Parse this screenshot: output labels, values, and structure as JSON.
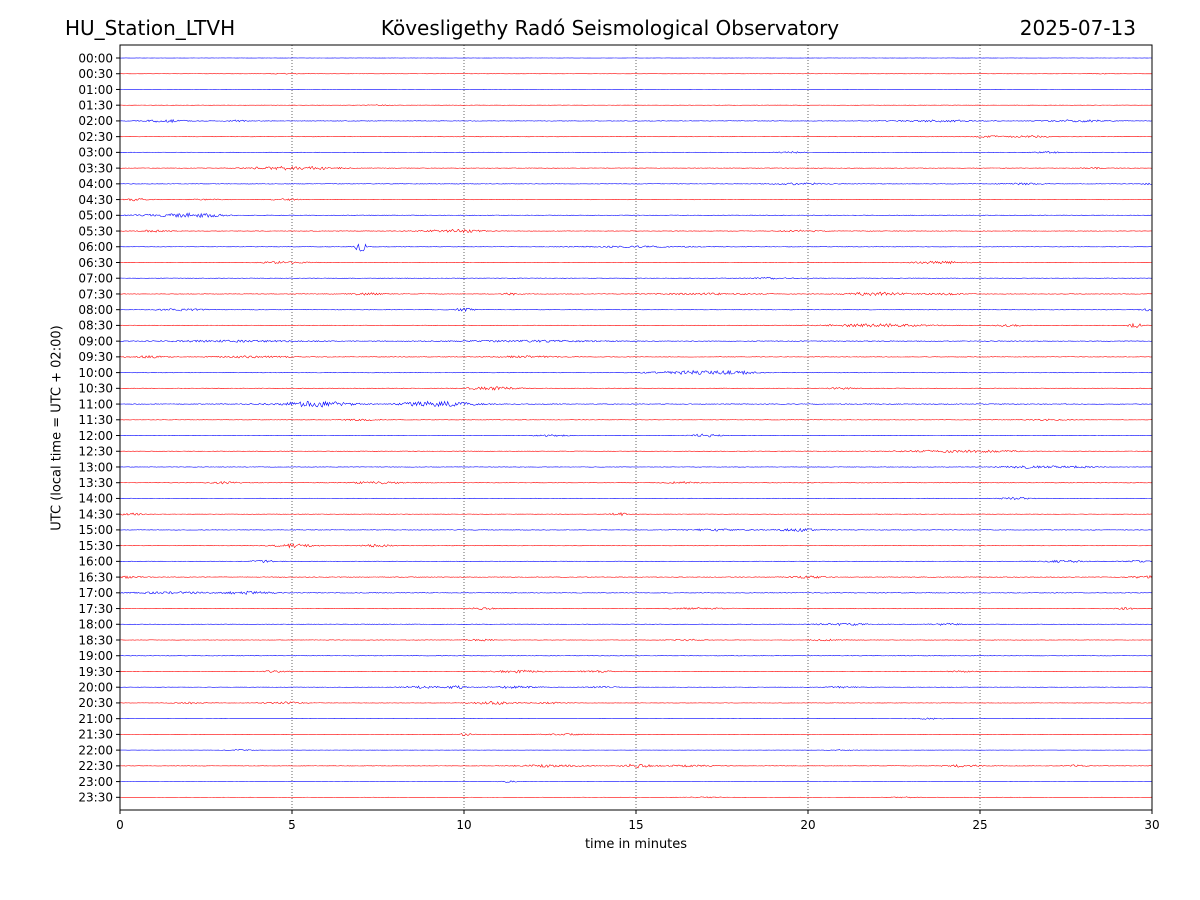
{
  "header": {
    "station": "HU_Station_LTVH",
    "title": "Kövesligethy Radó Seismological Observatory",
    "date": "2025-07-13"
  },
  "chart_data": {
    "type": "line",
    "xlabel": "time in minutes",
    "ylabel": "UTC (local time = UTC + 02:00)",
    "xlim": [
      0,
      30
    ],
    "x_ticks": [
      0,
      5,
      10,
      15,
      20,
      25,
      30
    ],
    "x_tick_labels": [
      "0",
      "5",
      "10",
      "15",
      "20",
      "25",
      "30"
    ],
    "vertical_gridlines": [
      5,
      10,
      15,
      20,
      25
    ],
    "grid": "vertical dotted",
    "trace_colors": [
      "#0000ff",
      "#ff0000"
    ],
    "rows": [
      {
        "label": "00:00",
        "level": 0.1,
        "events": []
      },
      {
        "label": "00:30",
        "level": 0.12,
        "events": [
          [
            4.8,
            0.3,
            0.4
          ],
          [
            28.6,
            0.3,
            0.4
          ]
        ]
      },
      {
        "label": "01:00",
        "level": 0.1,
        "events": []
      },
      {
        "label": "01:30",
        "level": 0.14,
        "events": [
          [
            7.5,
            0.3,
            0.4
          ]
        ]
      },
      {
        "label": "02:00",
        "level": 0.3,
        "events": [
          [
            1.3,
            0.4,
            1.4
          ],
          [
            3.4,
            0.2,
            0.8
          ],
          [
            23.8,
            0.8,
            0.9
          ],
          [
            27.9,
            0.6,
            1.1
          ]
        ]
      },
      {
        "label": "02:30",
        "level": 0.18,
        "events": [
          [
            25.4,
            0.4,
            0.8
          ],
          [
            26.5,
            0.4,
            1.0
          ]
        ]
      },
      {
        "label": "03:00",
        "level": 0.22,
        "events": [
          [
            19.5,
            0.3,
            0.8
          ],
          [
            27,
            0.4,
            0.8
          ]
        ]
      },
      {
        "label": "03:30",
        "level": 0.28,
        "events": [
          [
            4.5,
            0.6,
            1.2
          ],
          [
            5.5,
            0.6,
            1.4
          ],
          [
            28.3,
            0.2,
            0.8
          ]
        ]
      },
      {
        "label": "04:00",
        "level": 0.28,
        "events": [
          [
            19.8,
            0.5,
            1.0
          ],
          [
            26.2,
            0.4,
            0.8
          ],
          [
            29.9,
            0.2,
            1.0
          ]
        ]
      },
      {
        "label": "04:30",
        "level": 0.24,
        "events": [
          [
            0.5,
            0.3,
            1.2
          ],
          [
            2.5,
            0.3,
            0.8
          ],
          [
            4.8,
            0.3,
            0.8
          ]
        ]
      },
      {
        "label": "05:00",
        "level": 0.32,
        "events": [
          [
            1.5,
            0.8,
            1.0
          ],
          [
            2.3,
            0.5,
            1.4
          ]
        ]
      },
      {
        "label": "05:30",
        "level": 0.3,
        "events": [
          [
            1.0,
            0.3,
            1.0
          ],
          [
            9.7,
            0.6,
            1.5
          ],
          [
            19.8,
            0.4,
            1.0
          ]
        ]
      },
      {
        "label": "06:00",
        "level": 0.22,
        "events": [
          [
            7.0,
            0.12,
            5.0
          ],
          [
            15.0,
            1.2,
            0.8
          ]
        ]
      },
      {
        "label": "06:30",
        "level": 0.28,
        "events": [
          [
            4.8,
            0.5,
            1.0
          ],
          [
            23.8,
            0.5,
            1.4
          ]
        ]
      },
      {
        "label": "07:00",
        "level": 0.3,
        "events": [
          [
            19.0,
            0.4,
            0.8
          ]
        ]
      },
      {
        "label": "07:30",
        "level": 0.32,
        "events": [
          [
            7.2,
            0.4,
            1.0
          ],
          [
            11.4,
            0.2,
            1.1
          ],
          [
            17.0,
            1.0,
            0.8
          ],
          [
            22.0,
            0.6,
            1.8
          ],
          [
            24.0,
            0.4,
            0.8
          ]
        ]
      },
      {
        "label": "08:00",
        "level": 0.3,
        "events": [
          [
            1.8,
            0.5,
            1.0
          ],
          [
            10.0,
            0.2,
            1.6
          ],
          [
            29.9,
            0.2,
            1.0
          ]
        ]
      },
      {
        "label": "08:30",
        "level": 0.32,
        "events": [
          [
            22.0,
            1.0,
            1.4
          ],
          [
            25.8,
            0.3,
            1.0
          ],
          [
            29.5,
            0.15,
            2.2
          ]
        ]
      },
      {
        "label": "09:00",
        "level": 0.4,
        "events": [
          [
            3.0,
            1.5,
            0.8
          ],
          [
            12.0,
            1.5,
            0.8
          ]
        ]
      },
      {
        "label": "09:30",
        "level": 0.32,
        "events": [
          [
            0.8,
            0.4,
            1.0
          ],
          [
            4.0,
            0.8,
            1.0
          ],
          [
            11.8,
            0.6,
            1.0
          ]
        ]
      },
      {
        "label": "10:00",
        "level": 0.34,
        "events": [
          [
            16.7,
            0.8,
            1.8
          ],
          [
            18.0,
            0.4,
            1.0
          ]
        ]
      },
      {
        "label": "10:30",
        "level": 0.3,
        "events": [
          [
            10.8,
            0.5,
            1.6
          ],
          [
            21.0,
            0.3,
            0.8
          ]
        ]
      },
      {
        "label": "11:00",
        "level": 0.42,
        "events": [
          [
            5.2,
            0.7,
            1.3
          ],
          [
            6.0,
            0.6,
            1.9
          ],
          [
            8.8,
            0.5,
            1.6
          ],
          [
            9.6,
            0.6,
            1.7
          ]
        ]
      },
      {
        "label": "11:30",
        "level": 0.26,
        "events": [
          [
            7.0,
            0.4,
            0.8
          ],
          [
            27.0,
            0.4,
            0.8
          ]
        ]
      },
      {
        "label": "12:00",
        "level": 0.28,
        "events": [
          [
            12.5,
            0.4,
            0.8
          ],
          [
            17.0,
            0.3,
            1.4
          ]
        ]
      },
      {
        "label": "12:30",
        "level": 0.28,
        "events": [
          [
            24.0,
            1.0,
            1.0
          ],
          [
            25.5,
            0.5,
            0.8
          ]
        ]
      },
      {
        "label": "13:00",
        "level": 0.28,
        "events": [
          [
            26.5,
            0.6,
            1.2
          ],
          [
            27.8,
            0.5,
            0.8
          ]
        ]
      },
      {
        "label": "13:30",
        "level": 0.32,
        "events": [
          [
            3.0,
            0.3,
            1.0
          ],
          [
            7.5,
            0.6,
            1.0
          ],
          [
            16.3,
            0.3,
            1.0
          ]
        ]
      },
      {
        "label": "14:00",
        "level": 0.26,
        "events": [
          [
            26.0,
            0.3,
            1.2
          ]
        ]
      },
      {
        "label": "14:30",
        "level": 0.24,
        "events": [
          [
            0.3,
            0.3,
            1.0
          ],
          [
            14.5,
            0.15,
            1.6
          ]
        ]
      },
      {
        "label": "15:00",
        "level": 0.32,
        "events": [
          [
            17.3,
            0.6,
            1.0
          ],
          [
            19.7,
            0.5,
            1.3
          ]
        ]
      },
      {
        "label": "15:30",
        "level": 0.3,
        "events": [
          [
            5.0,
            0.4,
            1.8
          ],
          [
            7.5,
            0.3,
            1.2
          ]
        ]
      },
      {
        "label": "16:00",
        "level": 0.28,
        "events": [
          [
            4.2,
            0.3,
            1.0
          ],
          [
            27.5,
            0.5,
            1.0
          ],
          [
            29.5,
            0.3,
            0.8
          ]
        ]
      },
      {
        "label": "16:30",
        "level": 0.36,
        "events": [
          [
            0.2,
            0.3,
            1.0
          ],
          [
            20.0,
            0.4,
            1.0
          ],
          [
            29.8,
            0.3,
            1.4
          ]
        ]
      },
      {
        "label": "17:00",
        "level": 0.4,
        "events": [
          [
            1.5,
            0.8,
            1.0
          ],
          [
            3.7,
            0.5,
            1.3
          ]
        ]
      },
      {
        "label": "17:30",
        "level": 0.3,
        "events": [
          [
            10.5,
            0.3,
            1.0
          ],
          [
            16.8,
            0.6,
            0.8
          ],
          [
            29.2,
            0.2,
            1.1
          ]
        ]
      },
      {
        "label": "18:00",
        "level": 0.28,
        "events": [
          [
            21.0,
            0.6,
            1.0
          ],
          [
            24.0,
            0.3,
            1.0
          ]
        ]
      },
      {
        "label": "18:30",
        "level": 0.26,
        "events": [
          [
            10.5,
            0.3,
            0.8
          ],
          [
            16.5,
            0.3,
            0.8
          ],
          [
            20.5,
            0.3,
            0.8
          ]
        ]
      },
      {
        "label": "19:00",
        "level": 0.24,
        "events": []
      },
      {
        "label": "19:30",
        "level": 0.26,
        "events": [
          [
            4.5,
            0.3,
            0.8
          ],
          [
            11.5,
            0.5,
            1.3
          ],
          [
            13.8,
            0.5,
            1.0
          ],
          [
            24.5,
            0.3,
            0.8
          ]
        ]
      },
      {
        "label": "20:00",
        "level": 0.22,
        "events": [
          [
            8.8,
            0.4,
            1.2
          ],
          [
            9.8,
            0.2,
            1.4
          ],
          [
            11.5,
            0.5,
            1.2
          ],
          [
            14.0,
            0.3,
            0.8
          ],
          [
            21.0,
            0.3,
            0.8
          ]
        ]
      },
      {
        "label": "20:30",
        "level": 0.24,
        "events": [
          [
            2.0,
            0.3,
            0.8
          ],
          [
            4.8,
            0.4,
            1.2
          ],
          [
            10.9,
            0.4,
            1.6
          ],
          [
            12.5,
            0.3,
            0.8
          ]
        ]
      },
      {
        "label": "21:00",
        "level": 0.08,
        "events": [
          [
            23.5,
            0.3,
            0.8
          ]
        ]
      },
      {
        "label": "21:30",
        "level": 0.1,
        "events": [
          [
            10.0,
            0.2,
            1.2
          ],
          [
            13.0,
            0.6,
            0.8
          ]
        ]
      },
      {
        "label": "22:00",
        "level": 0.1,
        "events": [
          [
            3.5,
            0.3,
            0.6
          ],
          [
            21.0,
            0.3,
            0.6
          ]
        ]
      },
      {
        "label": "22:30",
        "level": 0.24,
        "events": [
          [
            12.5,
            0.7,
            1.2
          ],
          [
            15.0,
            0.3,
            1.9
          ],
          [
            16.5,
            0.5,
            1.0
          ],
          [
            24.5,
            0.4,
            1.2
          ],
          [
            27.8,
            0.2,
            1.0
          ]
        ]
      },
      {
        "label": "23:00",
        "level": 0.08,
        "events": [
          [
            11.3,
            0.2,
            0.8
          ]
        ]
      },
      {
        "label": "23:30",
        "level": 0.1,
        "events": [
          [
            17.0,
            0.4,
            0.6
          ],
          [
            22.8,
            0.3,
            0.6
          ]
        ]
      }
    ]
  }
}
